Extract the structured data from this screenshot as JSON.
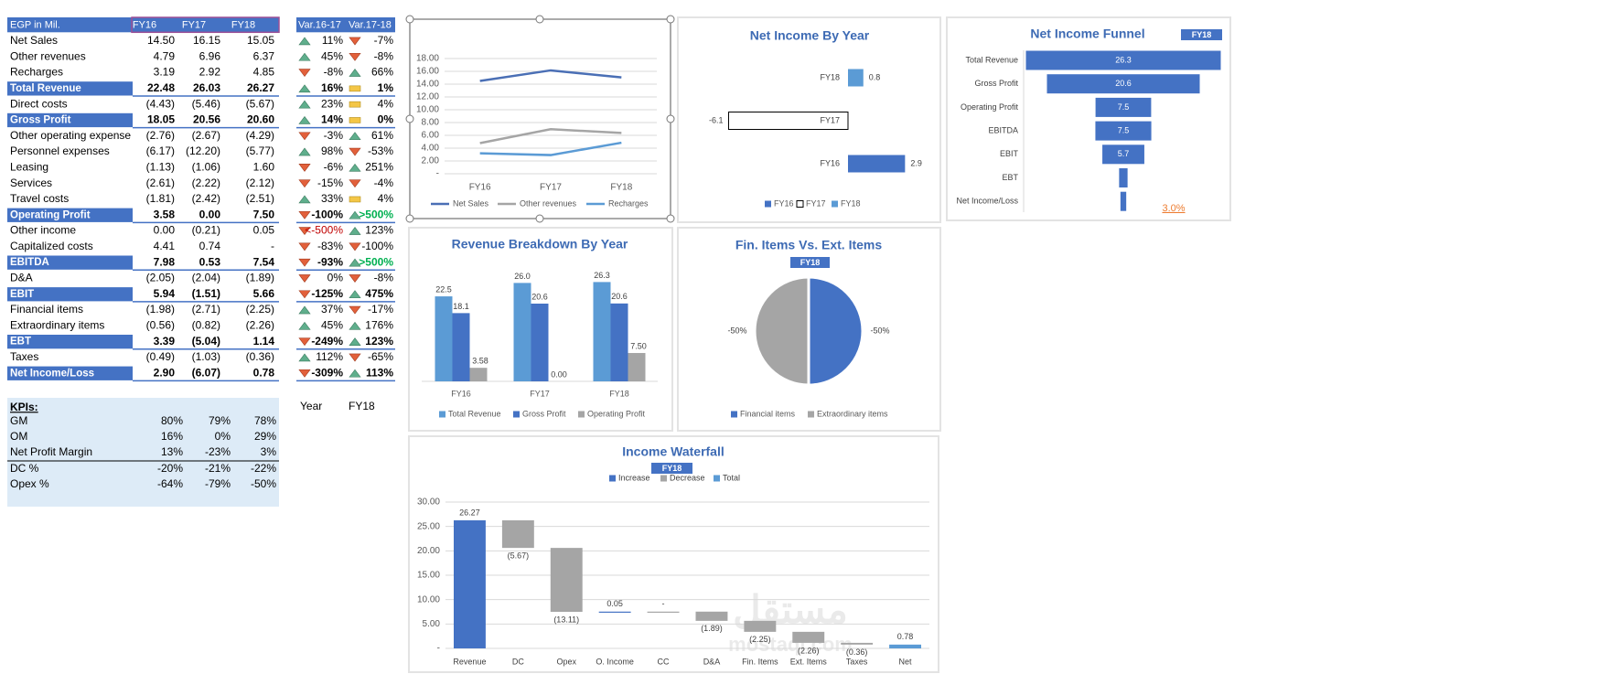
{
  "table": {
    "header": [
      "EGP in Mil.",
      "FY16",
      "FY17",
      "FY18"
    ],
    "rows": [
      {
        "label": "Net Sales",
        "values": [
          "14.50",
          "16.15",
          "15.05"
        ]
      },
      {
        "label": "Other revenues",
        "values": [
          "4.79",
          "6.96",
          "6.37"
        ]
      },
      {
        "label": "Recharges",
        "values": [
          "3.19",
          "2.92",
          "4.85"
        ]
      },
      {
        "label": "Total Revenue",
        "values": [
          "22.48",
          "26.03",
          "26.27"
        ],
        "bold": true
      },
      {
        "label": "Direct costs",
        "values": [
          "(4.43)",
          "(5.46)",
          "(5.67)"
        ]
      },
      {
        "label": "Gross Profit",
        "values": [
          "18.05",
          "20.56",
          "20.60"
        ],
        "bold": true
      },
      {
        "label": "Other operating expense",
        "values": [
          "(2.76)",
          "(2.67)",
          "(4.29)"
        ]
      },
      {
        "label": "Personnel expenses",
        "values": [
          "(6.17)",
          "(12.20)",
          "(5.77)"
        ]
      },
      {
        "label": "Leasing",
        "values": [
          "(1.13)",
          "(1.06)",
          "1.60"
        ]
      },
      {
        "label": "Services",
        "values": [
          "(2.61)",
          "(2.22)",
          "(2.12)"
        ]
      },
      {
        "label": "Travel costs",
        "values": [
          "(1.81)",
          "(2.42)",
          "(2.51)"
        ]
      },
      {
        "label": "Operating Profit",
        "values": [
          "3.58",
          "0.00",
          "7.50"
        ],
        "bold": true
      },
      {
        "label": "Other income",
        "values": [
          "0.00",
          "(0.21)",
          "0.05"
        ]
      },
      {
        "label": "Capitalized costs",
        "values": [
          "4.41",
          "0.74",
          "-"
        ]
      },
      {
        "label": "EBITDA",
        "values": [
          "7.98",
          "0.53",
          "7.54"
        ],
        "bold": true
      },
      {
        "label": "D&A",
        "values": [
          "(2.05)",
          "(2.04)",
          "(1.89)"
        ]
      },
      {
        "label": "EBIT",
        "values": [
          "5.94",
          "(1.51)",
          "5.66"
        ],
        "bold": true
      },
      {
        "label": "Financial items",
        "values": [
          "(1.98)",
          "(2.71)",
          "(2.25)"
        ]
      },
      {
        "label": "Extraordinary items",
        "values": [
          "(0.56)",
          "(0.82)",
          "(2.26)"
        ]
      },
      {
        "label": "EBT",
        "values": [
          "3.39",
          "(5.04)",
          "1.14"
        ],
        "bold": true
      },
      {
        "label": "Taxes",
        "values": [
          "(0.49)",
          "(1.03)",
          "(0.36)"
        ]
      },
      {
        "label": "Net Income/Loss",
        "values": [
          "2.90",
          "(6.07)",
          "0.78"
        ],
        "bold": true
      }
    ]
  },
  "variance": {
    "header": [
      "Var.16-17",
      "Var.17-18"
    ],
    "rows": [
      [
        {
          "text": "11%",
          "trend": "up"
        },
        {
          "text": "-7%",
          "trend": "down"
        }
      ],
      [
        {
          "text": "45%",
          "trend": "up"
        },
        {
          "text": "-8%",
          "trend": "down"
        }
      ],
      [
        {
          "text": "-8%",
          "trend": "down"
        },
        {
          "text": "66%",
          "trend": "up"
        }
      ],
      [
        {
          "text": "16%",
          "trend": "up"
        },
        {
          "text": "1%",
          "trend": "flat"
        }
      ],
      [
        {
          "text": "23%",
          "trend": "up"
        },
        {
          "text": "4%",
          "trend": "flat"
        }
      ],
      [
        {
          "text": "14%",
          "trend": "up"
        },
        {
          "text": "0%",
          "trend": "flat"
        }
      ],
      [
        {
          "text": "-3%",
          "trend": "down"
        },
        {
          "text": "61%",
          "trend": "up"
        }
      ],
      [
        {
          "text": "98%",
          "trend": "up"
        },
        {
          "text": "-53%",
          "trend": "down"
        }
      ],
      [
        {
          "text": "-6%",
          "trend": "down"
        },
        {
          "text": "251%",
          "trend": "up"
        }
      ],
      [
        {
          "text": "-15%",
          "trend": "down"
        },
        {
          "text": "-4%",
          "trend": "down"
        }
      ],
      [
        {
          "text": "33%",
          "trend": "up"
        },
        {
          "text": "4%",
          "trend": "flat"
        }
      ],
      [
        {
          "text": "-100%",
          "trend": "down"
        },
        {
          "text": ">500%",
          "trend": "up",
          "color": "#00b050"
        }
      ],
      [
        {
          "text": "<-500%",
          "trend": "down",
          "color": "#c00000"
        },
        {
          "text": "123%",
          "trend": "up"
        }
      ],
      [
        {
          "text": "-83%",
          "trend": "down"
        },
        {
          "text": "-100%",
          "trend": "down"
        }
      ],
      [
        {
          "text": "-93%",
          "trend": "down"
        },
        {
          "text": ">500%",
          "trend": "up",
          "color": "#00b050"
        }
      ],
      [
        {
          "text": "0%",
          "trend": "down"
        },
        {
          "text": "-8%",
          "trend": "down"
        }
      ],
      [
        {
          "text": "-125%",
          "trend": "down"
        },
        {
          "text": "475%",
          "trend": "up"
        }
      ],
      [
        {
          "text": "37%",
          "trend": "up"
        },
        {
          "text": "-17%",
          "trend": "down"
        }
      ],
      [
        {
          "text": "45%",
          "trend": "up"
        },
        {
          "text": "176%",
          "trend": "up"
        }
      ],
      [
        {
          "text": "-249%",
          "trend": "down"
        },
        {
          "text": "123%",
          "trend": "up"
        }
      ],
      [
        {
          "text": "112%",
          "trend": "up"
        },
        {
          "text": "-65%",
          "trend": "down"
        }
      ],
      [
        {
          "text": "-309%",
          "trend": "down"
        },
        {
          "text": "113%",
          "trend": "up"
        }
      ]
    ]
  },
  "kpis": {
    "title": "KPIs:",
    "rows": [
      {
        "label": "GM",
        "values": [
          "80%",
          "79%",
          "78%"
        ]
      },
      {
        "label": "OM",
        "values": [
          "16%",
          "0%",
          "29%"
        ]
      },
      {
        "label": "Net Profit Margin",
        "values": [
          "13%",
          "-23%",
          "3%"
        ]
      },
      {
        "label": "DC %",
        "values": [
          "-20%",
          "-21%",
          "-22%"
        ]
      },
      {
        "label": "Opex %",
        "values": [
          "-64%",
          "-79%",
          "-50%"
        ]
      }
    ]
  },
  "selector": {
    "label": "Year",
    "value": "FY18"
  },
  "watermark": {
    "arabic": "مستقل",
    "latin": "mostaql.com"
  },
  "chart_data": [
    {
      "type": "line",
      "categories": [
        "FY16",
        "FY17",
        "FY18"
      ],
      "series": [
        {
          "name": "Net Sales",
          "color": "#4a6fb5",
          "values": [
            14.5,
            16.15,
            15.05
          ]
        },
        {
          "name": "Other revenues",
          "color": "#a5a5a5",
          "values": [
            4.79,
            6.96,
            6.37
          ]
        },
        {
          "name": "Recharges",
          "color": "#5b9bd5",
          "values": [
            3.19,
            2.92,
            4.85
          ]
        }
      ],
      "ylim": [
        0,
        18
      ],
      "yticks": [
        {
          "value": 0,
          "label": "-"
        },
        {
          "value": 2,
          "label": "2.00"
        },
        {
          "value": 4,
          "label": "4.00"
        },
        {
          "value": 6,
          "label": "6.00"
        },
        {
          "value": 8,
          "label": "8.00"
        },
        {
          "value": 10,
          "label": "10.00"
        },
        {
          "value": 12,
          "label": "12.00"
        },
        {
          "value": 14,
          "label": "14.00"
        },
        {
          "value": 16,
          "label": "16.00"
        },
        {
          "value": 18,
          "label": "18.00"
        }
      ],
      "grid": true,
      "legend": "bottom"
    },
    {
      "type": "hbar",
      "title": "Net Income By Year",
      "categories": [
        "FY16",
        "FY17",
        "FY18"
      ],
      "values": [
        2.9,
        -6.07,
        0.78
      ],
      "value_labels": [
        "2.9",
        "-6.1",
        "0.8"
      ],
      "colors": [
        "#4472c4",
        "#ffffff",
        "#5b9bd5"
      ],
      "legend": "bottom"
    },
    {
      "type": "funnel",
      "title": "Net Income Funnel",
      "filter": "FY18",
      "categories": [
        "Total Revenue",
        "Gross Profit",
        "Operating Profit",
        "EBITDA",
        "EBIT",
        "EBT",
        "Net Income/Loss"
      ],
      "values": [
        26.27,
        20.6,
        7.5,
        7.54,
        5.66,
        1.14,
        0.78
      ],
      "value_labels": [
        "26.3",
        "20.6",
        "7.5",
        "7.5",
        "5.7",
        null,
        null
      ],
      "color": "#4472c4",
      "annotation": "3.0%"
    },
    {
      "type": "grouped_bar",
      "title": "Revenue Breakdown By Year",
      "categories": [
        "FY16",
        "FY17",
        "FY18"
      ],
      "series": [
        {
          "name": "Total Revenue",
          "color": "#5b9bd5",
          "values": [
            22.48,
            26.03,
            26.27
          ],
          "value_labels": [
            "22.5",
            "26.0",
            "26.3"
          ]
        },
        {
          "name": "Gross Profit",
          "color": "#4472c4",
          "values": [
            18.05,
            20.56,
            20.6
          ],
          "value_labels": [
            "18.1",
            "20.6",
            "20.6"
          ]
        },
        {
          "name": "Operating Profit",
          "color": "#a5a5a5",
          "values": [
            3.58,
            0,
            7.5
          ],
          "value_labels": [
            "3.58",
            "0.00",
            "7.50"
          ]
        }
      ],
      "legend": "bottom"
    },
    {
      "type": "pie",
      "title": "Fin. Items Vs. Ext. Items",
      "filter": "FY18",
      "categories": [
        "Financial items",
        "Extraordinary items"
      ],
      "values": [
        -50,
        -50
      ],
      "value_labels": [
        "-50%",
        "-50%"
      ],
      "colors": [
        "#4472c4",
        "#a5a5a5"
      ],
      "legend": "bottom"
    },
    {
      "type": "waterfall",
      "title": "Income Waterfall",
      "filter": "FY18",
      "legend_items": [
        {
          "name": "Increase",
          "kind": "increase",
          "color": "#4472c4"
        },
        {
          "name": "Decrease",
          "kind": "decrease",
          "color": "#a5a5a5"
        },
        {
          "name": "Total",
          "kind": "total",
          "color": "#5b9bd5"
        }
      ],
      "categories": [
        "Revenue",
        "DC",
        "Opex",
        "O. Income",
        "CC",
        "D&A",
        "Fin. Items",
        "Ext. Items",
        "Taxes",
        "Net"
      ],
      "values": [
        26.27,
        -5.67,
        -13.11,
        0.05,
        0,
        -1.89,
        -2.25,
        -2.26,
        -0.36,
        0.78
      ],
      "value_labels": [
        "26.27",
        "(5.67)",
        "(13.11)",
        "0.05",
        "-",
        "(1.89)",
        "(2.25)",
        "(2.26)",
        "(0.36)",
        "0.78"
      ],
      "kinds": [
        "increase",
        "decrease",
        "decrease",
        "increase",
        "decrease",
        "decrease",
        "decrease",
        "decrease",
        "decrease",
        "total"
      ],
      "ylim": [
        0,
        30
      ],
      "yticks": [
        {
          "value": 0,
          "label": "-"
        },
        {
          "value": 5,
          "label": "5.00"
        },
        {
          "value": 10,
          "label": "10.00"
        },
        {
          "value": 15,
          "label": "15.00"
        },
        {
          "value": 20,
          "label": "20.00"
        },
        {
          "value": 25,
          "label": "25.00"
        },
        {
          "value": 30,
          "label": "30.00"
        }
      ],
      "grid": true,
      "legend": "top"
    }
  ]
}
